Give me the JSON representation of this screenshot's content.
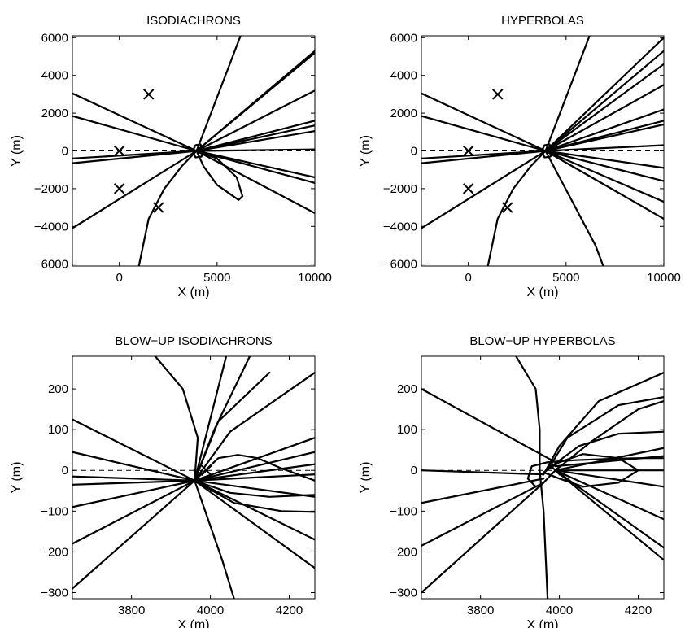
{
  "chart_data": [
    {
      "type": "line",
      "title": "ISODIACHRONS",
      "xlabel": "X (m)",
      "ylabel": "Y (m)",
      "xlim": [
        -2400,
        10000
      ],
      "ylim": [
        -6100,
        6100
      ],
      "xticks": [
        0,
        5000,
        10000
      ],
      "xtick_labels": [
        "0",
        "5000",
        "10000"
      ],
      "yticks": [
        6000,
        4000,
        2000,
        0,
        -2000,
        -4000,
        -6000
      ],
      "ytick_labels": [
        "6000",
        "4000",
        "2000",
        "0",
        "−2000",
        "−4000",
        "−6000"
      ],
      "grid": false,
      "reference_line": {
        "y": 0,
        "style": "dashed"
      },
      "markers": [
        {
          "x": 1500,
          "y": 3000
        },
        {
          "x": 0,
          "y": 0
        },
        {
          "x": 0,
          "y": -2000
        },
        {
          "x": 2000,
          "y": -3000
        }
      ],
      "series": [
        {
          "x": [
            -2400,
            3950
          ],
          "y": [
            3050,
            0
          ]
        },
        {
          "x": [
            -2400,
            3950
          ],
          "y": [
            1850,
            0
          ]
        },
        {
          "x": [
            -2400,
            3950
          ],
          "y": [
            -400,
            0
          ]
        },
        {
          "x": [
            -2400,
            3950
          ],
          "y": [
            -650,
            0
          ]
        },
        {
          "x": [
            -2400,
            3950
          ],
          "y": [
            -4100,
            0
          ]
        },
        {
          "x": [
            1000,
            1500,
            2300,
            3200,
            3950
          ],
          "y": [
            -6100,
            -3600,
            -2000,
            -800,
            0
          ]
        },
        {
          "x": [
            3950,
            5000,
            6000,
            6300,
            6100,
            5000,
            4300,
            3950
          ],
          "y": [
            0,
            -400,
            -1400,
            -2400,
            -2600,
            -1800,
            -800,
            0
          ]
        },
        {
          "x": [
            3950,
            6200
          ],
          "y": [
            0,
            6100
          ]
        },
        {
          "x": [
            3950,
            10000
          ],
          "y": [
            0,
            5300
          ]
        },
        {
          "x": [
            3950,
            10000
          ],
          "y": [
            0,
            5200
          ]
        },
        {
          "x": [
            3950,
            10000
          ],
          "y": [
            0,
            3200
          ]
        },
        {
          "x": [
            3950,
            10000
          ],
          "y": [
            0,
            1600
          ]
        },
        {
          "x": [
            3950,
            10000
          ],
          "y": [
            0,
            1350
          ]
        },
        {
          "x": [
            3950,
            10000
          ],
          "y": [
            0,
            1050
          ]
        },
        {
          "x": [
            3950,
            10000
          ],
          "y": [
            0,
            80
          ]
        },
        {
          "x": [
            3950,
            10000
          ],
          "y": [
            0,
            -1400
          ]
        },
        {
          "x": [
            3950,
            10000
          ],
          "y": [
            0,
            -1700
          ]
        },
        {
          "x": [
            3950,
            10000
          ],
          "y": [
            0,
            -3300
          ]
        },
        {
          "x": [
            3750,
            3900,
            4150,
            4350,
            4200,
            3900,
            3750
          ],
          "y": [
            0,
            300,
            350,
            0,
            -300,
            -350,
            0
          ]
        }
      ]
    },
    {
      "type": "line",
      "title": "HYPERBOLAS",
      "xlabel": "X (m)",
      "ylabel": "Y (m)",
      "xlim": [
        -2400,
        10000
      ],
      "ylim": [
        -6100,
        6100
      ],
      "xticks": [
        0,
        5000,
        10000
      ],
      "xtick_labels": [
        "0",
        "5000",
        "10000"
      ],
      "yticks": [
        6000,
        4000,
        2000,
        0,
        -2000,
        -4000,
        -6000
      ],
      "ytick_labels": [
        "6000",
        "4000",
        "2000",
        "0",
        "−2000",
        "−4000",
        "−6000"
      ],
      "grid": false,
      "reference_line": {
        "y": 0,
        "style": "dashed"
      },
      "markers": [
        {
          "x": 1500,
          "y": 3000
        },
        {
          "x": 0,
          "y": 0
        },
        {
          "x": 0,
          "y": -2000
        },
        {
          "x": 2000,
          "y": -3000
        }
      ],
      "series": [
        {
          "x": [
            -2400,
            3950
          ],
          "y": [
            3050,
            0
          ]
        },
        {
          "x": [
            -2400,
            3950
          ],
          "y": [
            1850,
            0
          ]
        },
        {
          "x": [
            -2400,
            3950
          ],
          "y": [
            -400,
            0
          ]
        },
        {
          "x": [
            -2400,
            3950
          ],
          "y": [
            -650,
            0
          ]
        },
        {
          "x": [
            -2400,
            3950
          ],
          "y": [
            -4100,
            0
          ]
        },
        {
          "x": [
            1000,
            1500,
            2300,
            3200,
            3950
          ],
          "y": [
            -6100,
            -3600,
            -2000,
            -800,
            0
          ]
        },
        {
          "x": [
            3950,
            6500,
            6900
          ],
          "y": [
            0,
            -5000,
            -6100
          ]
        },
        {
          "x": [
            3950,
            6200
          ],
          "y": [
            0,
            6100
          ]
        },
        {
          "x": [
            3950,
            10000
          ],
          "y": [
            0,
            6000
          ]
        },
        {
          "x": [
            3950,
            10000
          ],
          "y": [
            0,
            5300
          ]
        },
        {
          "x": [
            3950,
            10000
          ],
          "y": [
            0,
            4600
          ]
        },
        {
          "x": [
            3950,
            10000
          ],
          "y": [
            0,
            3500
          ]
        },
        {
          "x": [
            3950,
            10000
          ],
          "y": [
            0,
            2200
          ]
        },
        {
          "x": [
            3950,
            10000
          ],
          "y": [
            0,
            1600
          ]
        },
        {
          "x": [
            3950,
            10000
          ],
          "y": [
            0,
            1400
          ]
        },
        {
          "x": [
            3950,
            10000
          ],
          "y": [
            0,
            300
          ]
        },
        {
          "x": [
            3950,
            10000
          ],
          "y": [
            0,
            -900
          ]
        },
        {
          "x": [
            3950,
            10000
          ],
          "y": [
            0,
            -1600
          ]
        },
        {
          "x": [
            3950,
            10000
          ],
          "y": [
            0,
            -2700
          ]
        },
        {
          "x": [
            3950,
            10000
          ],
          "y": [
            0,
            -3600
          ]
        },
        {
          "x": [
            3750,
            3900,
            4150,
            4350,
            4200,
            3900,
            3750
          ],
          "y": [
            0,
            300,
            350,
            0,
            -300,
            -350,
            0
          ]
        }
      ]
    },
    {
      "type": "line",
      "title": "BLOW−UP ISODIACHRONS",
      "xlabel": "X (m)",
      "ylabel": "Y (m)",
      "xlim": [
        3650,
        4265
      ],
      "ylim": [
        -315,
        280
      ],
      "xticks": [
        3800,
        4000,
        4200
      ],
      "xtick_labels": [
        "3800",
        "4000",
        "4200"
      ],
      "yticks": [
        200,
        100,
        0,
        -100,
        -200,
        -300
      ],
      "ytick_labels": [
        "200",
        "100",
        "0",
        "−100",
        "−200",
        "−300"
      ],
      "grid": false,
      "reference_line": {
        "y": 0,
        "style": "dashed"
      },
      "markers": [
        {
          "x": 3990,
          "y": 0
        }
      ],
      "series": [
        {
          "x": [
            3650,
            3960
          ],
          "y": [
            125,
            -25
          ]
        },
        {
          "x": [
            3650,
            3960
          ],
          "y": [
            45,
            -25
          ]
        },
        {
          "x": [
            3650,
            3960
          ],
          "y": [
            -15,
            -25
          ]
        },
        {
          "x": [
            3650,
            3960
          ],
          "y": [
            -35,
            -25
          ]
        },
        {
          "x": [
            3650,
            3960
          ],
          "y": [
            -90,
            -25
          ]
        },
        {
          "x": [
            3650,
            3960
          ],
          "y": [
            -180,
            -25
          ]
        },
        {
          "x": [
            3650,
            3960
          ],
          "y": [
            -290,
            -25
          ]
        },
        {
          "x": [
            3960,
            3968,
            3930,
            3860
          ],
          "y": [
            -25,
            80,
            200,
            280
          ]
        },
        {
          "x": [
            3960,
            4040
          ],
          "y": [
            -25,
            280
          ]
        },
        {
          "x": [
            3960,
            4010,
            4100
          ],
          "y": [
            -25,
            100,
            280
          ]
        },
        {
          "x": [
            3960,
            4020,
            4150
          ],
          "y": [
            -25,
            120,
            240
          ]
        },
        {
          "x": [
            3960,
            4050,
            4265
          ],
          "y": [
            -25,
            95,
            240
          ]
        },
        {
          "x": [
            3960,
            4265
          ],
          "y": [
            -25,
            80
          ]
        },
        {
          "x": [
            3960,
            4265
          ],
          "y": [
            -25,
            45
          ]
        },
        {
          "x": [
            3960,
            4265
          ],
          "y": [
            -25,
            15
          ]
        },
        {
          "x": [
            3960,
            4265
          ],
          "y": [
            -25,
            -10
          ]
        },
        {
          "x": [
            3960,
            4265
          ],
          "y": [
            -25,
            -65
          ]
        },
        {
          "x": [
            3960,
            4265
          ],
          "y": [
            -25,
            -170
          ]
        },
        {
          "x": [
            3960,
            4265
          ],
          "y": [
            -25,
            -240
          ]
        },
        {
          "x": [
            3960,
            4030,
            4060
          ],
          "y": [
            -25,
            -220,
            -315
          ]
        },
        {
          "x": [
            3960,
            4020,
            4070,
            4120,
            4180,
            4265
          ],
          "y": [
            -25,
            30,
            38,
            30,
            5,
            -25
          ]
        },
        {
          "x": [
            3960,
            4050,
            4150,
            4265
          ],
          "y": [
            -25,
            -55,
            -65,
            -60
          ]
        },
        {
          "x": [
            3960,
            4060,
            4180,
            4265
          ],
          "y": [
            -25,
            -80,
            -100,
            -102
          ]
        }
      ]
    },
    {
      "type": "line",
      "title": "BLOW−UP HYPERBOLAS",
      "xlabel": "X (m)",
      "ylabel": "Y (m)",
      "xlim": [
        3650,
        4265
      ],
      "ylim": [
        -315,
        280
      ],
      "xticks": [
        3800,
        4000,
        4200
      ],
      "xtick_labels": [
        "3800",
        "4000",
        "4200"
      ],
      "yticks": [
        200,
        100,
        0,
        -100,
        -200,
        -300
      ],
      "ytick_labels": [
        "200",
        "100",
        "0",
        "−100",
        "−200",
        "−300"
      ],
      "grid": false,
      "reference_line": {
        "y": 0,
        "style": "dashed"
      },
      "markers": [
        {
          "x": 3990,
          "y": 0
        }
      ],
      "series": [
        {
          "x": [
            3650,
            3990
          ],
          "y": [
            200,
            20
          ]
        },
        {
          "x": [
            3650,
            3960
          ],
          "y": [
            0,
            -10
          ]
        },
        {
          "x": [
            3650,
            3960
          ],
          "y": [
            -80,
            -20
          ]
        },
        {
          "x": [
            3650,
            3960
          ],
          "y": [
            -185,
            -30
          ]
        },
        {
          "x": [
            3650,
            3960
          ],
          "y": [
            -300,
            -30
          ]
        },
        {
          "x": [
            3890,
            3940,
            3950,
            3950,
            3960,
            3970
          ],
          "y": [
            280,
            200,
            100,
            0,
            -100,
            -315
          ]
        },
        {
          "x": [
            3940,
            3920,
            3930,
            3970,
            4040,
            4120,
            4200,
            4265
          ],
          "y": [
            -40,
            -20,
            10,
            20,
            25,
            28,
            30,
            30
          ]
        },
        {
          "x": [
            3950,
            3990,
            4080,
            4200,
            4265
          ],
          "y": [
            -40,
            0,
            70,
            150,
            170
          ]
        },
        {
          "x": [
            3960,
            4000,
            4100,
            4265
          ],
          "y": [
            -10,
            60,
            170,
            240
          ]
        },
        {
          "x": [
            3970,
            4020,
            4150,
            4265
          ],
          "y": [
            0,
            80,
            160,
            180
          ]
        },
        {
          "x": [
            3980,
            4050,
            4150,
            4265
          ],
          "y": [
            10,
            60,
            90,
            95
          ]
        },
        {
          "x": [
            3990,
            4265
          ],
          "y": [
            0,
            55
          ]
        },
        {
          "x": [
            3990,
            4265
          ],
          "y": [
            10,
            35
          ]
        },
        {
          "x": [
            3990,
            4265
          ],
          "y": [
            0,
            0
          ]
        },
        {
          "x": [
            3990,
            4265
          ],
          "y": [
            0,
            -40
          ]
        },
        {
          "x": [
            3990,
            4265
          ],
          "y": [
            0,
            -120
          ]
        },
        {
          "x": [
            3990,
            4265
          ],
          "y": [
            0,
            -190
          ]
        },
        {
          "x": [
            3990,
            4265
          ],
          "y": [
            0,
            -220
          ]
        },
        {
          "x": [
            3960,
            4000,
            4060,
            4150,
            4200,
            4150,
            4060,
            4000,
            3960
          ],
          "y": [
            -5,
            20,
            40,
            30,
            0,
            -30,
            -40,
            -20,
            -5
          ]
        }
      ]
    }
  ]
}
